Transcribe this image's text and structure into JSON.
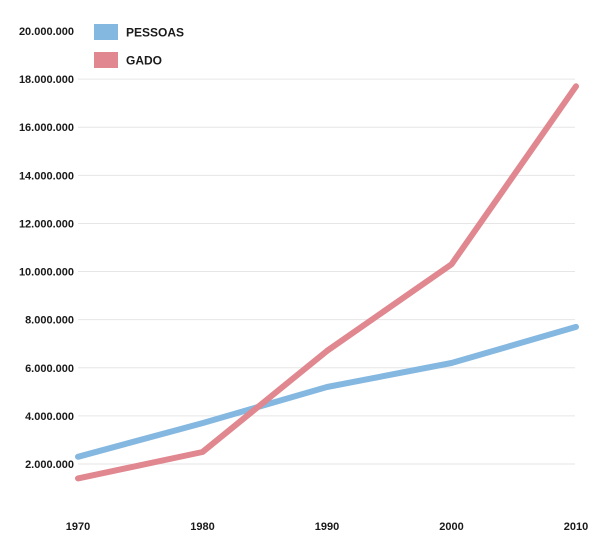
{
  "chart_data": {
    "type": "line",
    "x": [
      1970,
      1980,
      1990,
      2000,
      2010
    ],
    "x_tick_labels": [
      "1970",
      "1980",
      "1990",
      "2000",
      "2010"
    ],
    "y_tick_labels": [
      "2.000.000",
      "4.000.000",
      "6.000.000",
      "8.000.000",
      "10.000.000",
      "12.000.000",
      "14.000.000",
      "16.000.000",
      "18.000.000",
      "20.000.000"
    ],
    "y_ticks": [
      2000000,
      4000000,
      6000000,
      8000000,
      10000000,
      12000000,
      14000000,
      16000000,
      18000000,
      20000000
    ],
    "ylim": [
      0,
      20000000
    ],
    "xlim": [
      1970,
      2010
    ],
    "grid": true,
    "legend_position": "top-left",
    "series": [
      {
        "name": "PESSOAS",
        "color": "#85b8e0",
        "values": [
          2300000,
          3700000,
          5200000,
          6200000,
          7700000
        ]
      },
      {
        "name": "GADO",
        "color": "#e0878f",
        "values": [
          1400000,
          2500000,
          6700000,
          10300000,
          17700000
        ]
      }
    ],
    "title": "",
    "xlabel": "",
    "ylabel": ""
  }
}
